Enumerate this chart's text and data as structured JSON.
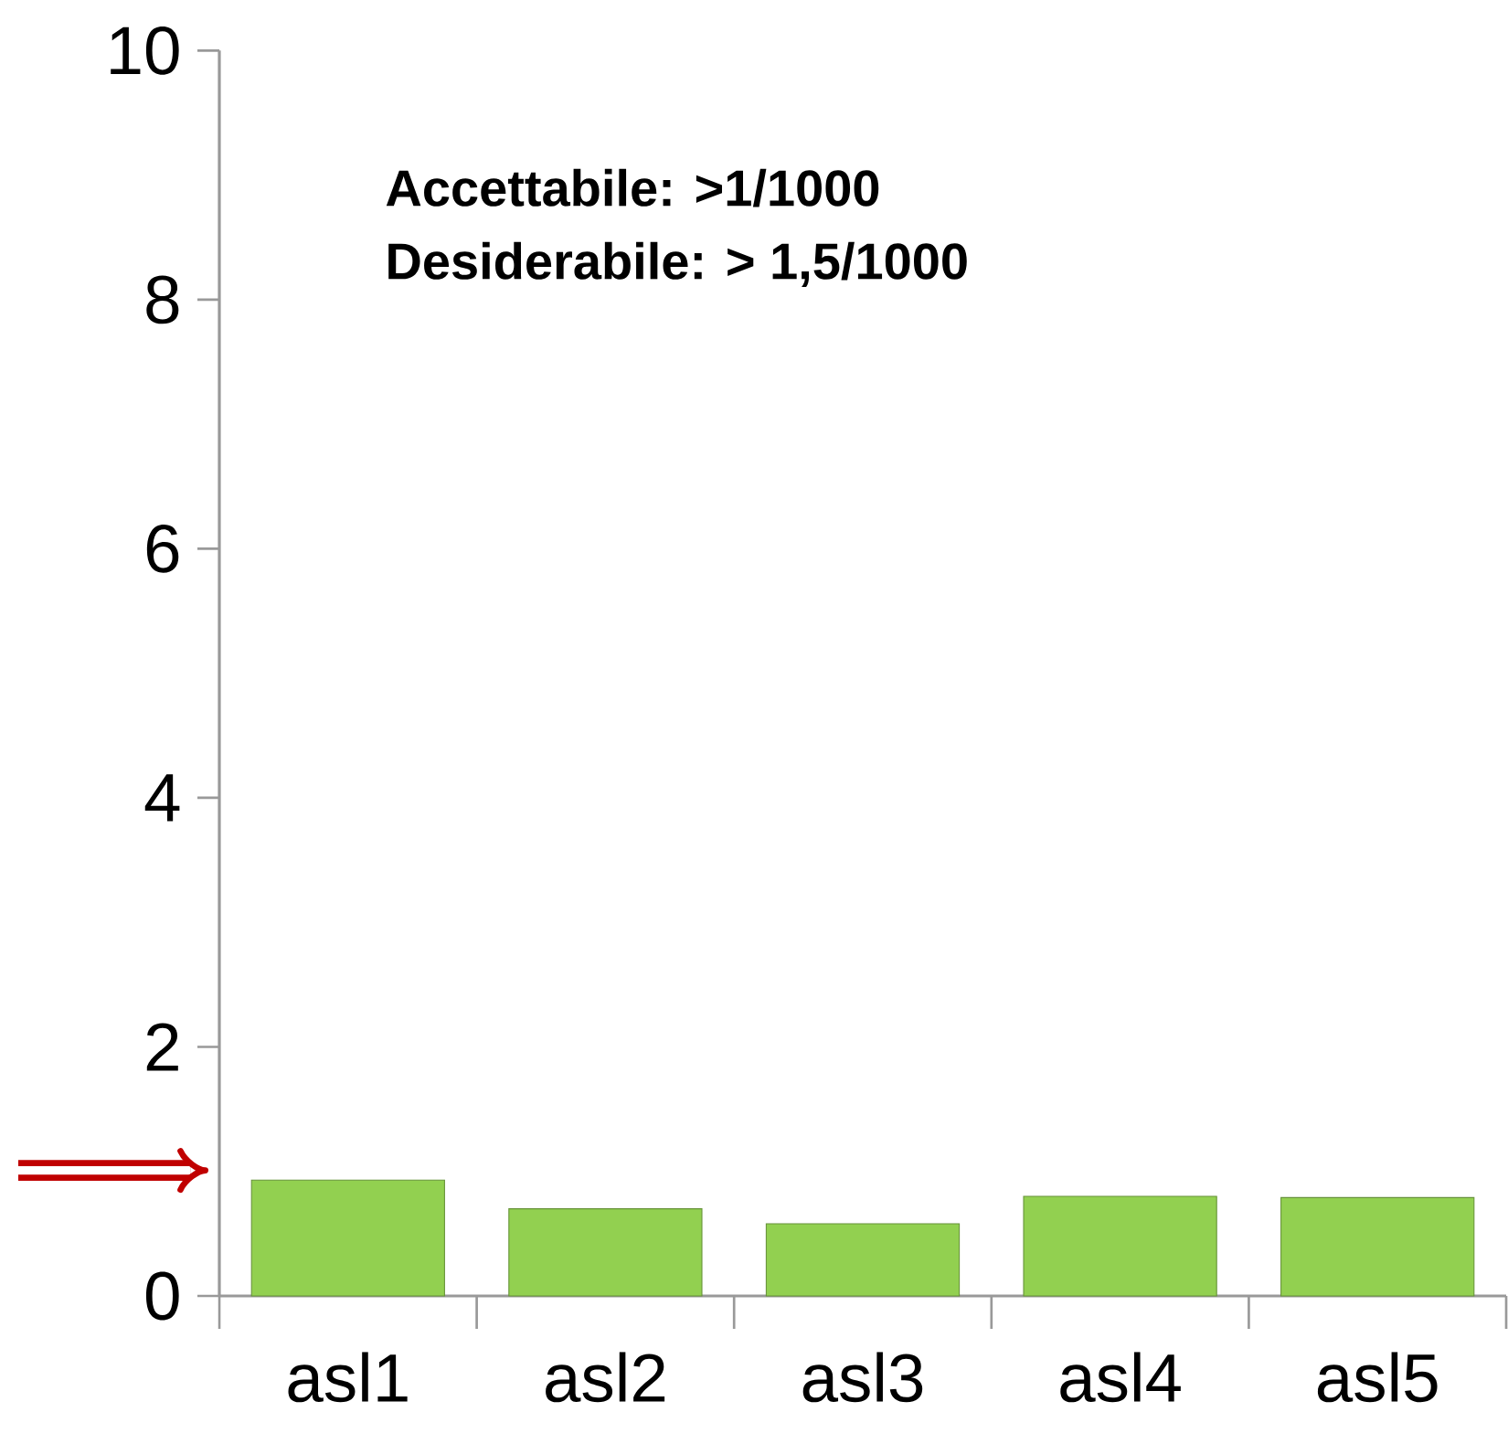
{
  "chart_data": {
    "type": "bar",
    "categories": [
      "asl1",
      "asl2",
      "asl3",
      "asl4",
      "asl5"
    ],
    "values": [
      0.93,
      0.7,
      0.58,
      0.8,
      0.79
    ],
    "color": "#92d050",
    "ylim": [
      0,
      10
    ],
    "yticks": [
      0,
      2,
      4,
      6,
      8,
      10
    ],
    "grid": false,
    "annotations": [
      "Accettabile: >1/1000",
      "Desiderabile: > 1,5/1000"
    ]
  }
}
